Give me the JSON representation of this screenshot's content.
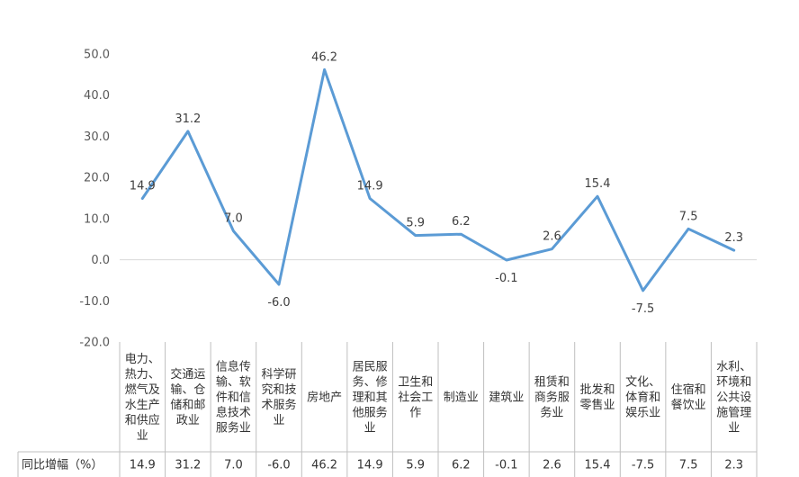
{
  "chart_data": {
    "type": "line",
    "series_color": "#5B9BD5",
    "grid": false,
    "ylim": [
      -20.0,
      50.0
    ],
    "yticks": [
      "50.0",
      "40.0",
      "30.0",
      "20.0",
      "10.0",
      "0.0",
      "-10.0",
      "-20.0"
    ],
    "categories": [
      "电力、热力、燃气及水生产和供应业",
      "交通运输、仓储和邮政业",
      "信息传输、软件和信息技术服务业",
      "科学研究和技术服务业",
      "房地产",
      "居民服务、修理和其他服务业",
      "卫生和社会工作",
      "制造业",
      "建筑业",
      "租赁和商务服务业",
      "批发和零售业",
      "文化、体育和娱乐业",
      "住宿和餐饮业",
      "水利、环境和公共设施管理业"
    ],
    "category_lines": [
      [
        "电力、",
        "热力、",
        "燃气及",
        "水生产",
        "和供应",
        "业"
      ],
      [
        "交通运",
        "输、仓",
        "储和邮",
        "政业"
      ],
      [
        "信息传",
        "输、软",
        "件和信",
        "息技术",
        "服务业"
      ],
      [
        "科学研",
        "究和技",
        "术服务",
        "业"
      ],
      [
        "房地产"
      ],
      [
        "居民服",
        "务、修",
        "理和其",
        "他服务",
        "业"
      ],
      [
        "卫生和",
        "社会工",
        "作"
      ],
      [
        "制造业"
      ],
      [
        "建筑业"
      ],
      [
        "租赁和",
        "商务服",
        "务业"
      ],
      [
        "批发和",
        "零售业"
      ],
      [
        "文化、",
        "体育和",
        "娱乐业"
      ],
      [
        "住宿和",
        "餐饮业"
      ],
      [
        "水利、",
        "环境和",
        "公共设",
        "施管理",
        "业"
      ]
    ],
    "series": [
      {
        "values": [
          14.9,
          31.2,
          7.0,
          -6.0,
          46.2,
          14.9,
          5.9,
          6.2,
          -0.1,
          2.6,
          15.4,
          -7.5,
          7.5,
          2.3
        ],
        "labels": [
          "14.9",
          "31.2",
          "7.0",
          "-6.0",
          "46.2",
          "14.9",
          "5.9",
          "6.2",
          "-0.1",
          "2.6",
          "15.4",
          "-7.5",
          "7.5",
          "2.3"
        ]
      }
    ],
    "table_row_label": "同比增幅（%）"
  }
}
